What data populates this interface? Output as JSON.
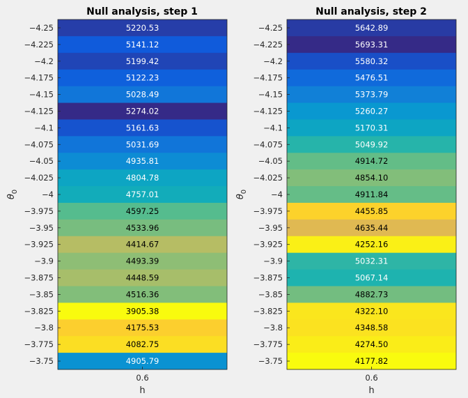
{
  "chart_data": [
    {
      "type": "heatmap",
      "title": "Null analysis, step 1",
      "xlabel": "h",
      "ylabel": "θ",
      "ylabel_subscript": "0",
      "x_categories": [
        "0.6"
      ],
      "y_categories": [
        "-4.25",
        "-4.225",
        "-4.2",
        "-4.175",
        "-4.15",
        "-4.125",
        "-4.1",
        "-4.075",
        "-4.05",
        "-4.025",
        "-4",
        "-3.975",
        "-3.95",
        "-3.925",
        "-3.9",
        "-3.875",
        "-3.85",
        "-3.825",
        "-3.8",
        "-3.775",
        "-3.75"
      ],
      "values": [
        5220.53,
        5141.12,
        5199.42,
        5122.23,
        5028.49,
        5274.02,
        5161.63,
        5031.69,
        4935.81,
        4804.78,
        4757.01,
        4597.25,
        4533.96,
        4414.67,
        4493.39,
        4448.59,
        4516.36,
        3905.38,
        4175.53,
        4082.75,
        4905.79
      ],
      "cell_labels": [
        "5220.53",
        "5141.12",
        "5199.42",
        "5122.23",
        "5028.49",
        "5274.02",
        "5161.63",
        "5031.69",
        "4935.81",
        "4804.78",
        "4757.01",
        "4597.25",
        "4533.96",
        "4414.67",
        "4493.39",
        "4448.59",
        "4516.36",
        "3905.38",
        "4175.53",
        "4082.75",
        "4905.79"
      ],
      "colormap": "parula"
    },
    {
      "type": "heatmap",
      "title": "Null analysis, step 2",
      "xlabel": "h",
      "ylabel": "θ",
      "ylabel_subscript": "0",
      "x_categories": [
        "0.6"
      ],
      "y_categories": [
        "-4.25",
        "-4.225",
        "-4.2",
        "-4.175",
        "-4.15",
        "-4.125",
        "-4.1",
        "-4.075",
        "-4.05",
        "-4.025",
        "-4",
        "-3.975",
        "-3.95",
        "-3.925",
        "-3.9",
        "-3.875",
        "-3.85",
        "-3.825",
        "-3.8",
        "-3.775",
        "-3.75"
      ],
      "values": [
        5642.89,
        5693.31,
        5580.32,
        5476.51,
        5373.79,
        5260.27,
        5170.31,
        5049.92,
        4914.72,
        4854.1,
        4911.84,
        4455.85,
        4635.44,
        4252.16,
        5032.31,
        5067.14,
        4882.73,
        4322.1,
        4348.58,
        4274.5,
        4177.82
      ],
      "cell_labels": [
        "5642.89",
        "5693.31",
        "5580.32",
        "5476.51",
        "5373.79",
        "5260.27",
        "5170.31",
        "5049.92",
        "4914.72",
        "4854.10",
        "4911.84",
        "4455.85",
        "4635.44",
        "4252.16",
        "5032.31",
        "5067.14",
        "4882.73",
        "4322.10",
        "4348.58",
        "4274.50",
        "4177.82"
      ],
      "colormap": "parula"
    }
  ]
}
